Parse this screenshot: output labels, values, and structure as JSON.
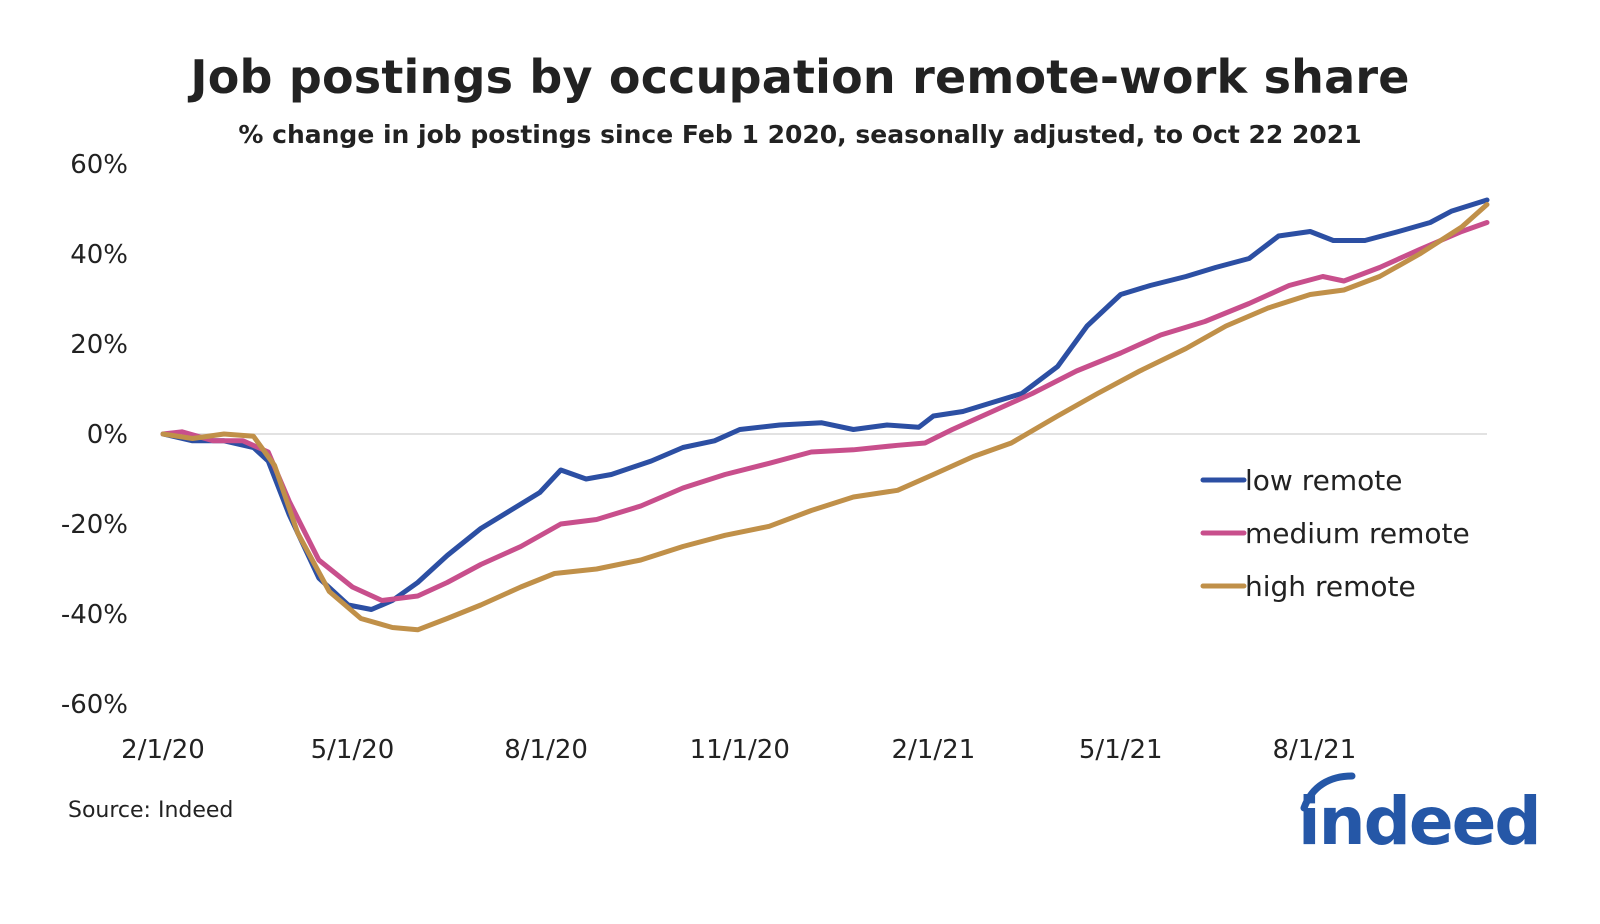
{
  "title": "Job postings by occupation remote-work share",
  "subtitle": "% change in job postings since Feb 1 2020, seasonally adjusted, to Oct 22 2021",
  "source": "Source: Indeed",
  "logo": {
    "text": "indeed",
    "color": "#2557a7"
  },
  "chart_data": {
    "type": "line",
    "title": "Job postings by occupation remote-work share",
    "subtitle": "% change in job postings since Feb 1 2020, seasonally adjusted, to Oct 22 2021",
    "ylim": [
      -60,
      60
    ],
    "yticks": [
      60,
      40,
      20,
      0,
      -20,
      -40,
      -60
    ],
    "ytick_labels": [
      "60%",
      "40%",
      "20%",
      "0%",
      "-20%",
      "-40%",
      "-60%"
    ],
    "xlim": [
      "2020-02-01",
      "2021-10-22"
    ],
    "xticks": [
      "2020-02-01",
      "2020-05-01",
      "2020-08-01",
      "2020-11-01",
      "2021-02-01",
      "2021-05-01",
      "2021-08-01"
    ],
    "xtick_labels": [
      "2/1/20",
      "5/1/20",
      "8/1/20",
      "11/1/20",
      "2/1/21",
      "5/1/21",
      "8/1/21"
    ],
    "grid": false,
    "zero_line": true,
    "legend_position": "right",
    "series": [
      {
        "name": "low remote",
        "color": "#2c4fa3",
        "points": [
          [
            "2020-02-01",
            0
          ],
          [
            "2020-02-15",
            -1.5
          ],
          [
            "2020-03-01",
            -1.5
          ],
          [
            "2020-03-15",
            -3
          ],
          [
            "2020-03-22",
            -6
          ],
          [
            "2020-04-01",
            -18
          ],
          [
            "2020-04-15",
            -32
          ],
          [
            "2020-04-29",
            -38
          ],
          [
            "2020-05-10",
            -39
          ],
          [
            "2020-05-20",
            -37
          ],
          [
            "2020-06-01",
            -33
          ],
          [
            "2020-06-15",
            -27
          ],
          [
            "2020-07-01",
            -21
          ],
          [
            "2020-07-15",
            -17
          ],
          [
            "2020-07-29",
            -13
          ],
          [
            "2020-08-08",
            -8
          ],
          [
            "2020-08-20",
            -10
          ],
          [
            "2020-09-01",
            -9
          ],
          [
            "2020-09-20",
            -6
          ],
          [
            "2020-10-05",
            -3
          ],
          [
            "2020-10-20",
            -1.5
          ],
          [
            "2020-11-01",
            1
          ],
          [
            "2020-11-20",
            2
          ],
          [
            "2020-12-10",
            2.5
          ],
          [
            "2020-12-25",
            1
          ],
          [
            "2021-01-10",
            2
          ],
          [
            "2021-01-25",
            1.5
          ],
          [
            "2021-02-01",
            4
          ],
          [
            "2021-02-15",
            5
          ],
          [
            "2021-03-01",
            7
          ],
          [
            "2021-03-15",
            9
          ],
          [
            "2021-04-01",
            15
          ],
          [
            "2021-04-15",
            24
          ],
          [
            "2021-05-01",
            31
          ],
          [
            "2021-05-15",
            33
          ],
          [
            "2021-06-01",
            35
          ],
          [
            "2021-06-15",
            37
          ],
          [
            "2021-07-01",
            39
          ],
          [
            "2021-07-15",
            44
          ],
          [
            "2021-07-30",
            45
          ],
          [
            "2021-08-10",
            43
          ],
          [
            "2021-08-25",
            43
          ],
          [
            "2021-09-10",
            45
          ],
          [
            "2021-09-25",
            47
          ],
          [
            "2021-10-05",
            49.5
          ],
          [
            "2021-10-22",
            52
          ]
        ]
      },
      {
        "name": "medium remote",
        "color": "#c84f8c",
        "points": [
          [
            "2020-02-01",
            0
          ],
          [
            "2020-02-10",
            0.5
          ],
          [
            "2020-02-25",
            -1.5
          ],
          [
            "2020-03-10",
            -1.5
          ],
          [
            "2020-03-22",
            -4
          ],
          [
            "2020-04-01",
            -15
          ],
          [
            "2020-04-15",
            -28
          ],
          [
            "2020-05-01",
            -34
          ],
          [
            "2020-05-15",
            -37
          ],
          [
            "2020-06-01",
            -36
          ],
          [
            "2020-06-15",
            -33
          ],
          [
            "2020-07-01",
            -29
          ],
          [
            "2020-07-20",
            -25
          ],
          [
            "2020-08-08",
            -20
          ],
          [
            "2020-08-25",
            -19
          ],
          [
            "2020-09-15",
            -16
          ],
          [
            "2020-10-05",
            -12
          ],
          [
            "2020-10-25",
            -9
          ],
          [
            "2020-11-15",
            -6.5
          ],
          [
            "2020-12-05",
            -4
          ],
          [
            "2020-12-25",
            -3.5
          ],
          [
            "2021-01-15",
            -2.5
          ],
          [
            "2021-01-28",
            -2
          ],
          [
            "2021-02-10",
            1
          ],
          [
            "2021-03-01",
            5
          ],
          [
            "2021-03-20",
            9
          ],
          [
            "2021-04-10",
            14
          ],
          [
            "2021-05-01",
            18
          ],
          [
            "2021-05-20",
            22
          ],
          [
            "2021-06-10",
            25
          ],
          [
            "2021-07-01",
            29
          ],
          [
            "2021-07-20",
            33
          ],
          [
            "2021-08-05",
            35
          ],
          [
            "2021-08-15",
            34
          ],
          [
            "2021-09-01",
            37
          ],
          [
            "2021-09-20",
            41
          ],
          [
            "2021-10-10",
            45
          ],
          [
            "2021-10-22",
            47
          ]
        ]
      },
      {
        "name": "high remote",
        "color": "#c09049",
        "points": [
          [
            "2020-02-01",
            0
          ],
          [
            "2020-02-15",
            -1
          ],
          [
            "2020-03-01",
            0
          ],
          [
            "2020-03-15",
            -0.5
          ],
          [
            "2020-03-25",
            -7
          ],
          [
            "2020-04-05",
            -22
          ],
          [
            "2020-04-20",
            -35
          ],
          [
            "2020-05-05",
            -41
          ],
          [
            "2020-05-20",
            -43
          ],
          [
            "2020-06-01",
            -43.5
          ],
          [
            "2020-06-15",
            -41
          ],
          [
            "2020-07-01",
            -38
          ],
          [
            "2020-07-20",
            -34
          ],
          [
            "2020-08-05",
            -31
          ],
          [
            "2020-08-25",
            -30
          ],
          [
            "2020-09-15",
            -28
          ],
          [
            "2020-10-05",
            -25
          ],
          [
            "2020-10-25",
            -22.5
          ],
          [
            "2020-11-15",
            -20.5
          ],
          [
            "2020-12-05",
            -17
          ],
          [
            "2020-12-25",
            -14
          ],
          [
            "2021-01-15",
            -12.5
          ],
          [
            "2021-02-01",
            -9
          ],
          [
            "2021-02-20",
            -5
          ],
          [
            "2021-03-10",
            -2
          ],
          [
            "2021-04-01",
            4
          ],
          [
            "2021-04-20",
            9
          ],
          [
            "2021-05-10",
            14
          ],
          [
            "2021-06-01",
            19
          ],
          [
            "2021-06-20",
            24
          ],
          [
            "2021-07-10",
            28
          ],
          [
            "2021-07-30",
            31
          ],
          [
            "2021-08-15",
            32
          ],
          [
            "2021-09-01",
            35
          ],
          [
            "2021-09-20",
            40
          ],
          [
            "2021-10-10",
            46
          ],
          [
            "2021-10-22",
            51
          ]
        ]
      }
    ]
  }
}
